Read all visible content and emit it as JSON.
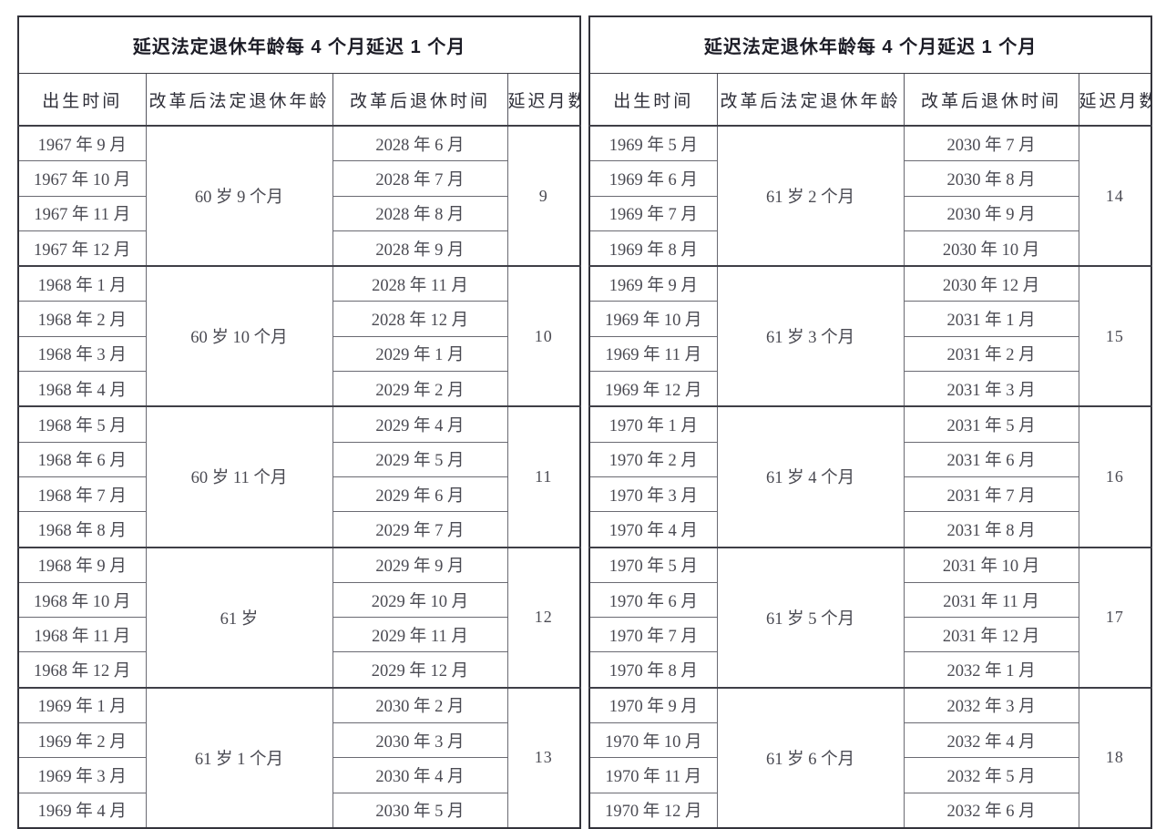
{
  "tables": [
    {
      "side": "left",
      "title": "延迟法定退休年龄每 4 个月延迟 1 个月",
      "columns": [
        "出生时间",
        "改革后法定退休年龄",
        "改革后退休时间",
        "延迟月数"
      ],
      "groups": [
        {
          "birth_months": [
            "1967 年 9 月",
            "1967 年 10 月",
            "1967 年 11 月",
            "1967 年 12 月"
          ],
          "statutory_age": "60 岁 9 个月",
          "retire_months": [
            "2028 年 6 月",
            "2028 年 7 月",
            "2028 年 8 月",
            "2028 年 9 月"
          ],
          "delay": "9"
        },
        {
          "birth_months": [
            "1968 年 1 月",
            "1968 年 2 月",
            "1968 年 3 月",
            "1968 年 4 月"
          ],
          "statutory_age": "60 岁 10 个月",
          "retire_months": [
            "2028 年 11 月",
            "2028 年 12 月",
            "2029 年 1 月",
            "2029 年 2 月"
          ],
          "delay": "10"
        },
        {
          "birth_months": [
            "1968 年 5 月",
            "1968 年 6 月",
            "1968 年 7 月",
            "1968 年 8 月"
          ],
          "statutory_age": "60 岁 11 个月",
          "retire_months": [
            "2029 年 4 月",
            "2029 年 5 月",
            "2029 年 6 月",
            "2029 年 7 月"
          ],
          "delay": "11"
        },
        {
          "birth_months": [
            "1968 年 9 月",
            "1968 年 10 月",
            "1968 年 11 月",
            "1968 年 12 月"
          ],
          "statutory_age": "61 岁",
          "retire_months": [
            "2029 年 9 月",
            "2029 年 10 月",
            "2029 年 11 月",
            "2029 年 12 月"
          ],
          "delay": "12"
        },
        {
          "birth_months": [
            "1969 年 1 月",
            "1969 年 2 月",
            "1969 年 3 月",
            "1969 年 4 月"
          ],
          "statutory_age": "61 岁 1 个月",
          "retire_months": [
            "2030 年 2 月",
            "2030 年 3 月",
            "2030 年 4 月",
            "2030 年 5 月"
          ],
          "delay": "13"
        }
      ]
    },
    {
      "side": "right",
      "title": "延迟法定退休年龄每 4 个月延迟 1 个月",
      "columns": [
        "出生时间",
        "改革后法定退休年龄",
        "改革后退休时间",
        "延迟月数"
      ],
      "groups": [
        {
          "birth_months": [
            "1969 年 5 月",
            "1969 年 6 月",
            "1969 年 7 月",
            "1969 年 8 月"
          ],
          "statutory_age": "61 岁 2 个月",
          "retire_months": [
            "2030 年 7 月",
            "2030 年 8 月",
            "2030 年 9 月",
            "2030 年 10 月"
          ],
          "delay": "14"
        },
        {
          "birth_months": [
            "1969 年 9 月",
            "1969 年 10 月",
            "1969 年 11 月",
            "1969 年 12 月"
          ],
          "statutory_age": "61 岁 3 个月",
          "retire_months": [
            "2030 年 12 月",
            "2031 年 1 月",
            "2031 年 2 月",
            "2031 年 3 月"
          ],
          "delay": "15"
        },
        {
          "birth_months": [
            "1970 年 1 月",
            "1970 年 2 月",
            "1970 年 3 月",
            "1970 年 4 月"
          ],
          "statutory_age": "61 岁 4 个月",
          "retire_months": [
            "2031 年 5 月",
            "2031 年 6 月",
            "2031 年 7 月",
            "2031 年 8 月"
          ],
          "delay": "16"
        },
        {
          "birth_months": [
            "1970 年 5 月",
            "1970 年 6 月",
            "1970 年 7 月",
            "1970 年 8 月"
          ],
          "statutory_age": "61 岁 5 个月",
          "retire_months": [
            "2031 年 10 月",
            "2031 年 11 月",
            "2031 年 12 月",
            "2032 年 1 月"
          ],
          "delay": "17"
        },
        {
          "birth_months": [
            "1970 年 9 月",
            "1970 年 10 月",
            "1970 年 11 月",
            "1970 年 12 月"
          ],
          "statutory_age": "61 岁 6 个月",
          "retire_months": [
            "2032 年 3 月",
            "2032 年 4 月",
            "2032 年 5 月",
            "2032 年 6 月"
          ],
          "delay": "18"
        }
      ]
    }
  ]
}
